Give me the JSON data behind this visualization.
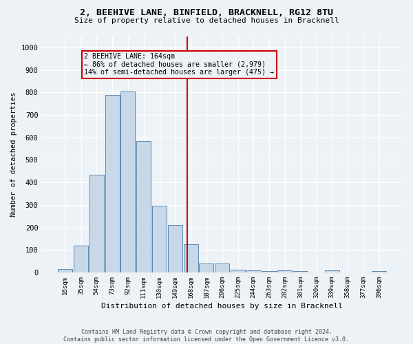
{
  "title": "2, BEEHIVE LANE, BINFIELD, BRACKNELL, RG12 8TU",
  "subtitle": "Size of property relative to detached houses in Bracknell",
  "xlabel": "Distribution of detached houses by size in Bracknell",
  "ylabel": "Number of detached properties",
  "categories": [
    "16sqm",
    "35sqm",
    "54sqm",
    "73sqm",
    "92sqm",
    "111sqm",
    "130sqm",
    "149sqm",
    "168sqm",
    "187sqm",
    "206sqm",
    "225sqm",
    "244sqm",
    "263sqm",
    "282sqm",
    "301sqm",
    "320sqm",
    "339sqm",
    "358sqm",
    "377sqm",
    "396sqm"
  ],
  "values": [
    15,
    120,
    435,
    790,
    805,
    585,
    295,
    210,
    125,
    40,
    40,
    12,
    8,
    5,
    8,
    5,
    0,
    8,
    0,
    0,
    5
  ],
  "bar_color": "#c8d8e8",
  "bar_edge_color": "#5a8ab0",
  "annotation_text": "2 BEEHIVE LANE: 164sqm\n← 86% of detached houses are smaller (2,979)\n14% of semi-detached houses are larger (475) →",
  "annotation_box_color": "#cc0000",
  "vline_color": "#cc0000",
  "background_color": "#edf2f7",
  "footer_line1": "Contains HM Land Registry data © Crown copyright and database right 2024.",
  "footer_line2": "Contains public sector information licensed under the Open Government Licence v3.0.",
  "ylim": [
    0,
    1050
  ],
  "yticks": [
    0,
    100,
    200,
    300,
    400,
    500,
    600,
    700,
    800,
    900,
    1000
  ]
}
